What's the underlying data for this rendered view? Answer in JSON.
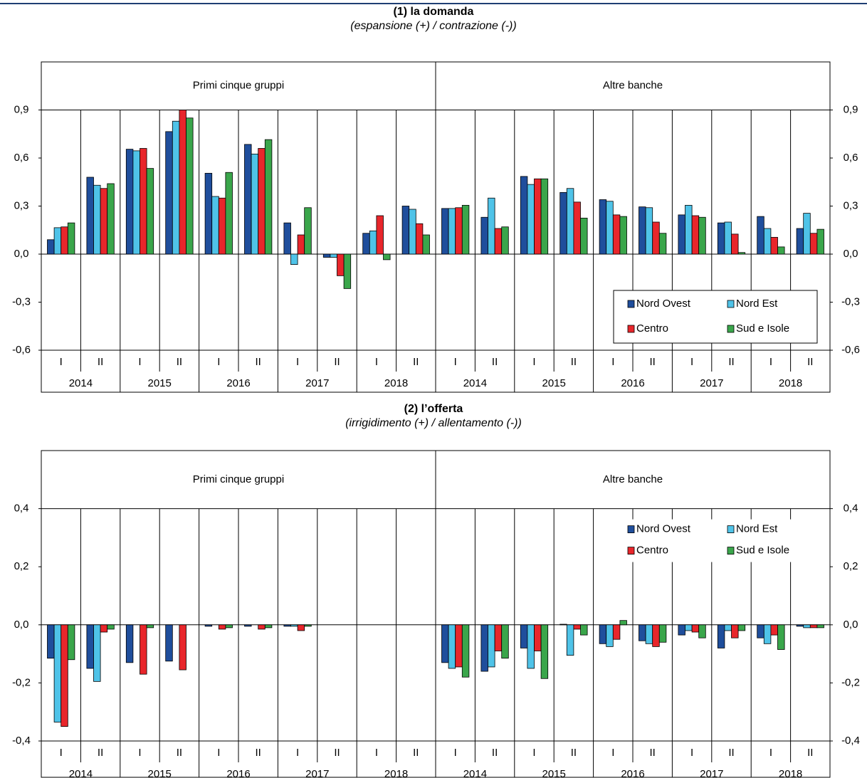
{
  "chart_data": [
    {
      "type": "bar",
      "title": "(1) la domanda",
      "subtitle": "(espansione (+) / contrazione (-))",
      "panels": [
        "Primi cinque gruppi",
        "Altre banche"
      ],
      "years": [
        "2014",
        "2015",
        "2016",
        "2017",
        "2018",
        "2014",
        "2015",
        "2016",
        "2017",
        "2018"
      ],
      "categories": [
        "I",
        "II",
        "I",
        "II",
        "I",
        "II",
        "I",
        "II",
        "I",
        "II",
        "I",
        "II",
        "I",
        "II",
        "I",
        "II",
        "I",
        "II",
        "I",
        "II"
      ],
      "series": [
        {
          "name": "Nord Ovest",
          "color": "#1f4e9c",
          "values": [
            0.09,
            0.48,
            0.655,
            0.765,
            0.505,
            0.685,
            0.195,
            -0.02,
            0.13,
            0.3,
            0.285,
            0.23,
            0.485,
            0.385,
            0.34,
            0.295,
            0.245,
            0.195,
            0.235,
            0.16
          ]
        },
        {
          "name": "Nord Est",
          "color": "#4fc3e8",
          "values": [
            0.165,
            0.43,
            0.645,
            0.83,
            0.36,
            0.625,
            -0.065,
            -0.02,
            0.145,
            0.28,
            0.285,
            0.35,
            0.435,
            0.41,
            0.33,
            0.29,
            0.305,
            0.2,
            0.16,
            0.255
          ]
        },
        {
          "name": "Centro",
          "color": "#e8262b",
          "values": [
            0.17,
            0.41,
            0.66,
            0.9,
            0.35,
            0.66,
            0.12,
            -0.135,
            0.24,
            0.19,
            0.29,
            0.16,
            0.47,
            0.325,
            0.245,
            0.2,
            0.24,
            0.125,
            0.105,
            0.13
          ]
        },
        {
          "name": "Sud e Isole",
          "color": "#3aa64b",
          "values": [
            0.195,
            0.44,
            0.535,
            0.85,
            0.51,
            0.715,
            0.29,
            -0.215,
            -0.035,
            0.12,
            0.305,
            0.17,
            0.47,
            0.225,
            0.235,
            0.13,
            0.23,
            0.01,
            0.045,
            0.155
          ]
        }
      ],
      "ylim": [
        -0.6,
        1.2
      ],
      "yticks": [
        {
          "value": -0.6,
          "label": "-0,6"
        },
        {
          "value": -0.3,
          "label": "-0,3"
        },
        {
          "value": 0,
          "label": "0,0"
        },
        {
          "value": 0.3,
          "label": "0,3"
        },
        {
          "value": 0.6,
          "label": "0,6"
        },
        {
          "value": 0.9,
          "label": "0,9"
        }
      ],
      "legend": "lower right",
      "legend_frame": true
    },
    {
      "type": "bar",
      "title": "(2) l’offerta",
      "subtitle": "(irrigidimento (+) / allentamento (-))",
      "panels": [
        "Primi cinque gruppi",
        "Altre banche"
      ],
      "years": [
        "2014",
        "2015",
        "2016",
        "2017",
        "2018",
        "2014",
        "2015",
        "2016",
        "2017",
        "2018"
      ],
      "categories": [
        "I",
        "II",
        "I",
        "II",
        "I",
        "II",
        "I",
        "II",
        "I",
        "II",
        "I",
        "II",
        "I",
        "II",
        "I",
        "II",
        "I",
        "II",
        "I",
        "II"
      ],
      "series": [
        {
          "name": "Nord Ovest",
          "color": "#1f4e9c",
          "values": [
            -0.115,
            -0.15,
            -0.13,
            -0.125,
            -0.005,
            -0.005,
            -0.005,
            0,
            0,
            0,
            -0.13,
            -0.16,
            -0.08,
            0.002,
            -0.065,
            -0.055,
            -0.035,
            -0.08,
            -0.045,
            -0.005
          ]
        },
        {
          "name": "Nord Est",
          "color": "#4fc3e8",
          "values": [
            -0.335,
            -0.195,
            0,
            0,
            0,
            0,
            -0.005,
            0,
            0,
            0,
            -0.15,
            -0.145,
            -0.15,
            -0.105,
            -0.075,
            -0.065,
            -0.02,
            -0.02,
            -0.065,
            -0.01
          ]
        },
        {
          "name": "Centro",
          "color": "#e8262b",
          "values": [
            -0.35,
            -0.025,
            -0.17,
            -0.155,
            -0.015,
            -0.015,
            -0.02,
            0,
            0,
            0,
            -0.145,
            -0.09,
            -0.09,
            -0.015,
            -0.05,
            -0.075,
            -0.025,
            -0.045,
            -0.035,
            -0.01
          ]
        },
        {
          "name": "Sud e Isole",
          "color": "#3aa64b",
          "values": [
            -0.12,
            -0.015,
            -0.01,
            0,
            -0.01,
            -0.01,
            -0.005,
            0,
            0,
            0,
            -0.18,
            -0.115,
            -0.185,
            -0.035,
            0.015,
            -0.06,
            -0.045,
            -0.02,
            -0.085,
            -0.01
          ]
        }
      ],
      "ylim": [
        -0.4,
        0.6
      ],
      "yticks": [
        {
          "value": -0.4,
          "label": "-0,4"
        },
        {
          "value": -0.2,
          "label": "-0,2"
        },
        {
          "value": 0,
          "label": "0,0"
        },
        {
          "value": 0.2,
          "label": "0,2"
        },
        {
          "value": 0.4,
          "label": "0,4"
        }
      ],
      "legend": "upper right",
      "legend_frame": false
    }
  ]
}
